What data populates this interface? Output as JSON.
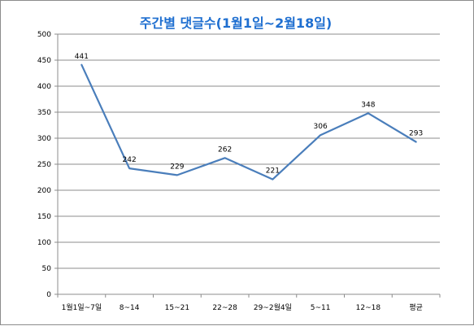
{
  "chart_data": {
    "type": "line",
    "title": "주간별 댓글수(1월1일~2월18일)",
    "categories": [
      "1월1일~7일",
      "8~14",
      "15~21",
      "22~28",
      "29~2월4일",
      "5~11",
      "12~18",
      "평균"
    ],
    "series": [
      {
        "values": [
          441,
          242,
          229,
          262,
          221,
          306,
          348,
          293
        ]
      }
    ],
    "data_labels": [
      "441",
      "242",
      "229",
      "262",
      "221",
      "306",
      "348",
      "293"
    ],
    "yticks": [
      "0",
      "50",
      "100",
      "150",
      "200",
      "250",
      "300",
      "350",
      "400",
      "450",
      "500"
    ],
    "ylim": [
      0,
      500
    ],
    "grid": true,
    "legend": "none",
    "colors": {
      "line": "#4a7ebb",
      "title": "#1f6fd0",
      "grid": "#8c8c8c"
    }
  }
}
